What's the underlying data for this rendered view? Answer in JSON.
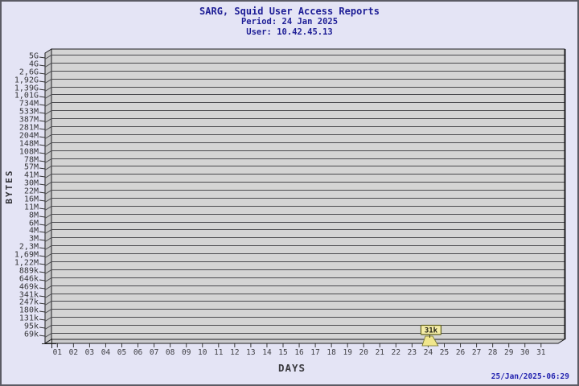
{
  "header": {
    "title": "SARG, Squid User Access Reports",
    "period": "Period: 24 Jan 2025",
    "user": "User: 10.42.45.13"
  },
  "footer": {
    "generated_timestamp": "25/Jan/2025-06:29"
  },
  "chart_data": {
    "type": "bar",
    "title": "SARG, Squid User Access Reports",
    "subtitle": [
      "Period: 24 Jan 2025",
      "User: 10.42.45.13"
    ],
    "xlabel": "DAYS",
    "ylabel": "BYTES",
    "scale": "log",
    "grid": true,
    "legend_position": "none",
    "x_categories": [
      "01",
      "02",
      "03",
      "04",
      "05",
      "06",
      "07",
      "08",
      "09",
      "10",
      "11",
      "12",
      "13",
      "14",
      "15",
      "16",
      "17",
      "18",
      "19",
      "20",
      "21",
      "22",
      "23",
      "24",
      "25",
      "26",
      "27",
      "28",
      "29",
      "30",
      "31"
    ],
    "y_tick_labels": [
      "5G",
      "4G",
      "2,6G",
      "1,92G",
      "1,39G",
      "1,01G",
      "734M",
      "533M",
      "387M",
      "281M",
      "204M",
      "148M",
      "108M",
      "78M",
      "57M",
      "41M",
      "30M",
      "22M",
      "16M",
      "11M",
      "8M",
      "6M",
      "4M",
      "3M",
      "2,3M",
      "1,69M",
      "1,22M",
      "889k",
      "646k",
      "469k",
      "341k",
      "247k",
      "180k",
      "131k",
      "95k",
      "69k"
    ],
    "ylim": [
      "69k",
      "5G"
    ],
    "values": [
      0,
      0,
      0,
      0,
      0,
      0,
      0,
      0,
      0,
      0,
      0,
      0,
      0,
      0,
      0,
      0,
      0,
      0,
      0,
      0,
      0,
      0,
      0,
      31000,
      0,
      0,
      0,
      0,
      0,
      0,
      0
    ],
    "annotations": [
      {
        "day": "24",
        "label": "31k",
        "value": 31000
      }
    ]
  },
  "colors": {
    "page_background": "#e4e4f5",
    "page_border": "#5b5b64",
    "title_navy": "#1e1e96",
    "timestamp_blue": "#2424b0",
    "plot_fill": "#d4d4d4",
    "wall_fill": "#c6c6c8",
    "floor_fill": "#cbcbcd",
    "gridline": "#4a4a4e",
    "plot_edge": "#1c1c1f",
    "bar_fill": "#f0e68c",
    "bar_edge": "#6f6f2a",
    "tooltip_fill": "#f5eda6",
    "tooltip_border": "#62621e"
  }
}
